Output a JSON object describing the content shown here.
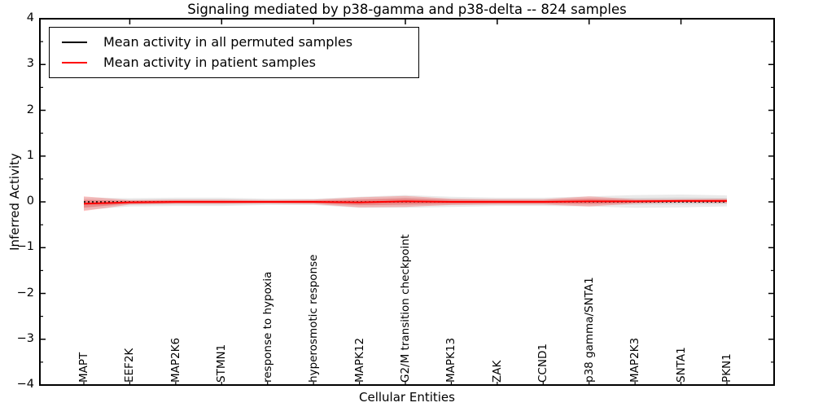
{
  "chart_data": {
    "type": "line",
    "title": "Signaling mediated by p38-gamma and p38-delta -- 824 samples",
    "xlabel": "Cellular Entities",
    "ylabel": "Inferred Activity",
    "ylim": [
      -4,
      4
    ],
    "yticks": [
      4,
      3,
      2,
      1,
      0,
      -1,
      -2,
      -3,
      -4
    ],
    "ytick_minor_step": 0.5,
    "grid": false,
    "legend_position": "upper left",
    "categories": [
      "MAPT",
      "EEF2K",
      "MAP2K6",
      "STMN1",
      "response to hypoxia",
      "hyperosmotic response",
      "MAPK12",
      "G2/M transition checkpoint",
      "MAPK13",
      "ZAK",
      "CCND1",
      "p38 gamma/SNTA1",
      "MAP2K3",
      "SNTA1",
      "PKN1"
    ],
    "series": [
      {
        "name": "Mean activity in all permuted samples",
        "color": "#000000",
        "line_style": "dotted",
        "values": [
          0.0,
          0.0,
          0.0,
          0.0,
          0.0,
          0.0,
          0.0,
          0.0,
          0.0,
          0.0,
          0.0,
          0.0,
          0.0,
          0.0,
          0.0
        ]
      },
      {
        "name": "Mean activity in patient samples",
        "color": "#ff0000",
        "line_style": "solid",
        "values": [
          -0.04,
          -0.01,
          0.0,
          0.0,
          0.0,
          0.0,
          -0.01,
          0.01,
          0.0,
          0.0,
          0.0,
          0.01,
          0.01,
          0.02,
          0.02
        ]
      }
    ],
    "bands": [
      {
        "name": "permuted-samples-std-band",
        "color": "#888888",
        "alpha_outer": 0.18,
        "alpha_inner": 0.16,
        "half_widths": [
          0.14,
          0.09,
          0.09,
          0.09,
          0.07,
          0.07,
          0.12,
          0.14,
          0.11,
          0.09,
          0.09,
          0.11,
          0.14,
          0.14,
          0.12
        ]
      },
      {
        "name": "patient-samples-std-band",
        "color": "#ff0000",
        "alpha_outer": 0.22,
        "alpha_inner": 0.2,
        "half_widths": [
          0.16,
          0.05,
          0.05,
          0.05,
          0.04,
          0.05,
          0.11,
          0.12,
          0.07,
          0.06,
          0.06,
          0.11,
          0.05,
          0.04,
          0.05
        ]
      }
    ],
    "legend": [
      {
        "label": "Mean activity in all permuted samples",
        "color": "#000000"
      },
      {
        "label": "Mean activity in patient samples",
        "color": "#ff0000"
      }
    ]
  }
}
